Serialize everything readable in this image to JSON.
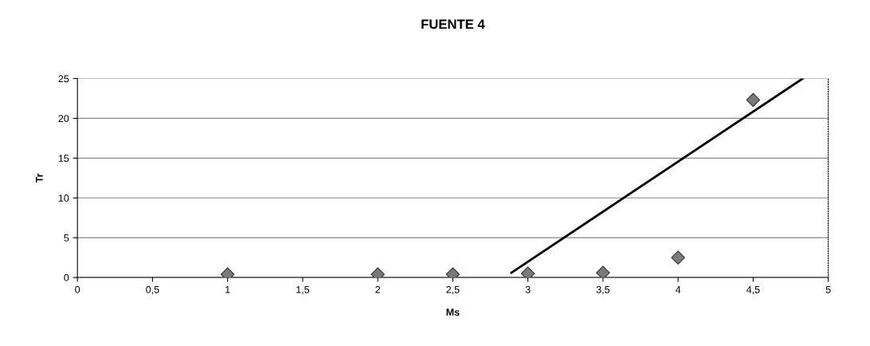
{
  "chart_data": {
    "type": "scatter",
    "title": "FUENTE 4",
    "xlabel": "Ms",
    "ylabel": "Tr",
    "xlim": [
      0,
      5
    ],
    "xticks": [
      0,
      {
        "value": 0.5,
        "label": "0,5"
      },
      1,
      {
        "value": 1.5,
        "label": "1,5"
      },
      2,
      {
        "value": 2.5,
        "label": "2,5"
      },
      3,
      {
        "value": 3.5,
        "label": "3,5"
      },
      4,
      {
        "value": 4.5,
        "label": "4,5"
      },
      5
    ],
    "ylim": [
      0,
      25
    ],
    "yticks": [
      0,
      5,
      10,
      15,
      20,
      25
    ],
    "grid": "y",
    "legend": false,
    "series": [
      {
        "color": "#7a7a7a",
        "marker": "diamond",
        "x": [
          1,
          2,
          2.5,
          3,
          3.5,
          4,
          4.5
        ],
        "values": [
          0.4,
          0.4,
          0.4,
          0.5,
          0.6,
          2.5,
          22.3
        ]
      },
      {
        "type": "line",
        "color": "#000000",
        "marker": "none",
        "line_style": "solid",
        "x": [
          2.89,
          4.83
        ],
        "values": [
          0.6,
          25
        ]
      }
    ]
  }
}
